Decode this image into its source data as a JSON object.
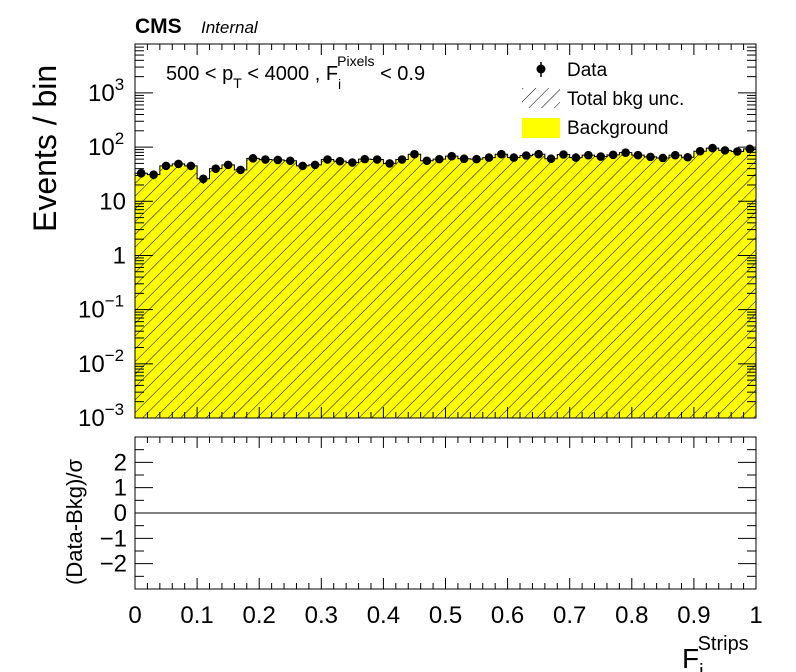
{
  "header": {
    "experiment": "CMS",
    "status": "Internal"
  },
  "selection": {
    "pt_prefix": "500 < p",
    "pt_sub": "T",
    "pt_suffix": " < 4000 , F",
    "frac_sub": "i",
    "frac_sup": "Pixels",
    "frac_suffix": " < 0.9"
  },
  "legend": {
    "placement": "top-right",
    "entries": [
      {
        "label": "Data",
        "style": "marker"
      },
      {
        "label": "Total bkg unc.",
        "style": "hatch"
      },
      {
        "label": "Background",
        "style": "fill"
      }
    ]
  },
  "colors": {
    "background_fill": "#ffff00",
    "data_marker": "#000000",
    "hatch": "#000000"
  },
  "chart_data": [
    {
      "type": "bar",
      "panel": "main",
      "ylabel": "Events / bin",
      "yscale": "log",
      "ylim": [
        0.001,
        8000
      ],
      "xlim": [
        0,
        1
      ],
      "bin_width": 0.02,
      "y_ticks": [
        {
          "value": 0.001,
          "base": "10",
          "exp": "−3"
        },
        {
          "value": 0.01,
          "base": "10",
          "exp": "−2"
        },
        {
          "value": 0.1,
          "base": "10",
          "exp": "−1"
        },
        {
          "value": 1,
          "base": "1",
          "exp": ""
        },
        {
          "value": 10,
          "base": "10",
          "exp": ""
        },
        {
          "value": 100,
          "base": "10",
          "exp": "2"
        },
        {
          "value": 1000,
          "base": "10",
          "exp": "3"
        }
      ],
      "series": [
        {
          "name": "Background",
          "values": [
            33,
            31,
            45,
            49,
            45,
            26,
            40,
            47,
            38,
            62,
            59,
            58,
            56,
            45,
            47,
            59,
            55,
            52,
            60,
            59,
            50,
            59,
            74,
            56,
            60,
            68,
            61,
            60,
            64,
            74,
            64,
            70,
            74,
            61,
            73,
            64,
            71,
            67,
            72,
            79,
            71,
            66,
            63,
            71,
            65,
            84,
            96,
            87,
            83,
            93
          ]
        },
        {
          "name": "Data",
          "values": [
            33,
            31,
            45,
            49,
            45,
            26,
            40,
            47,
            38,
            62,
            59,
            58,
            56,
            45,
            47,
            59,
            55,
            52,
            60,
            59,
            50,
            59,
            74,
            56,
            60,
            68,
            61,
            60,
            64,
            74,
            64,
            70,
            74,
            61,
            73,
            64,
            71,
            67,
            72,
            79,
            71,
            66,
            63,
            71,
            65,
            84,
            96,
            87,
            83,
            93
          ]
        }
      ]
    },
    {
      "type": "line",
      "panel": "ratio",
      "ylabel": "(Data-Bkg)/σ",
      "xlabel_base": "F",
      "xlabel_sub": "i",
      "xlabel_sup": "Strips",
      "xlim": [
        0,
        1
      ],
      "ylim": [
        -3,
        3
      ],
      "x_ticks": [
        {
          "value": 0,
          "label": "0"
        },
        {
          "value": 0.1,
          "label": "0.1"
        },
        {
          "value": 0.2,
          "label": "0.2"
        },
        {
          "value": 0.3,
          "label": "0.3"
        },
        {
          "value": 0.4,
          "label": "0.4"
        },
        {
          "value": 0.5,
          "label": "0.5"
        },
        {
          "value": 0.6,
          "label": "0.6"
        },
        {
          "value": 0.7,
          "label": "0.7"
        },
        {
          "value": 0.8,
          "label": "0.8"
        },
        {
          "value": 0.9,
          "label": "0.9"
        },
        {
          "value": 1,
          "label": "1"
        }
      ],
      "y_ticks": [
        {
          "value": 2,
          "label": "2"
        },
        {
          "value": 1,
          "label": "1"
        },
        {
          "value": 0,
          "label": "0"
        },
        {
          "value": -1,
          "label": "−1"
        },
        {
          "value": -2,
          "label": "−2"
        }
      ],
      "reference_line": 0
    }
  ]
}
